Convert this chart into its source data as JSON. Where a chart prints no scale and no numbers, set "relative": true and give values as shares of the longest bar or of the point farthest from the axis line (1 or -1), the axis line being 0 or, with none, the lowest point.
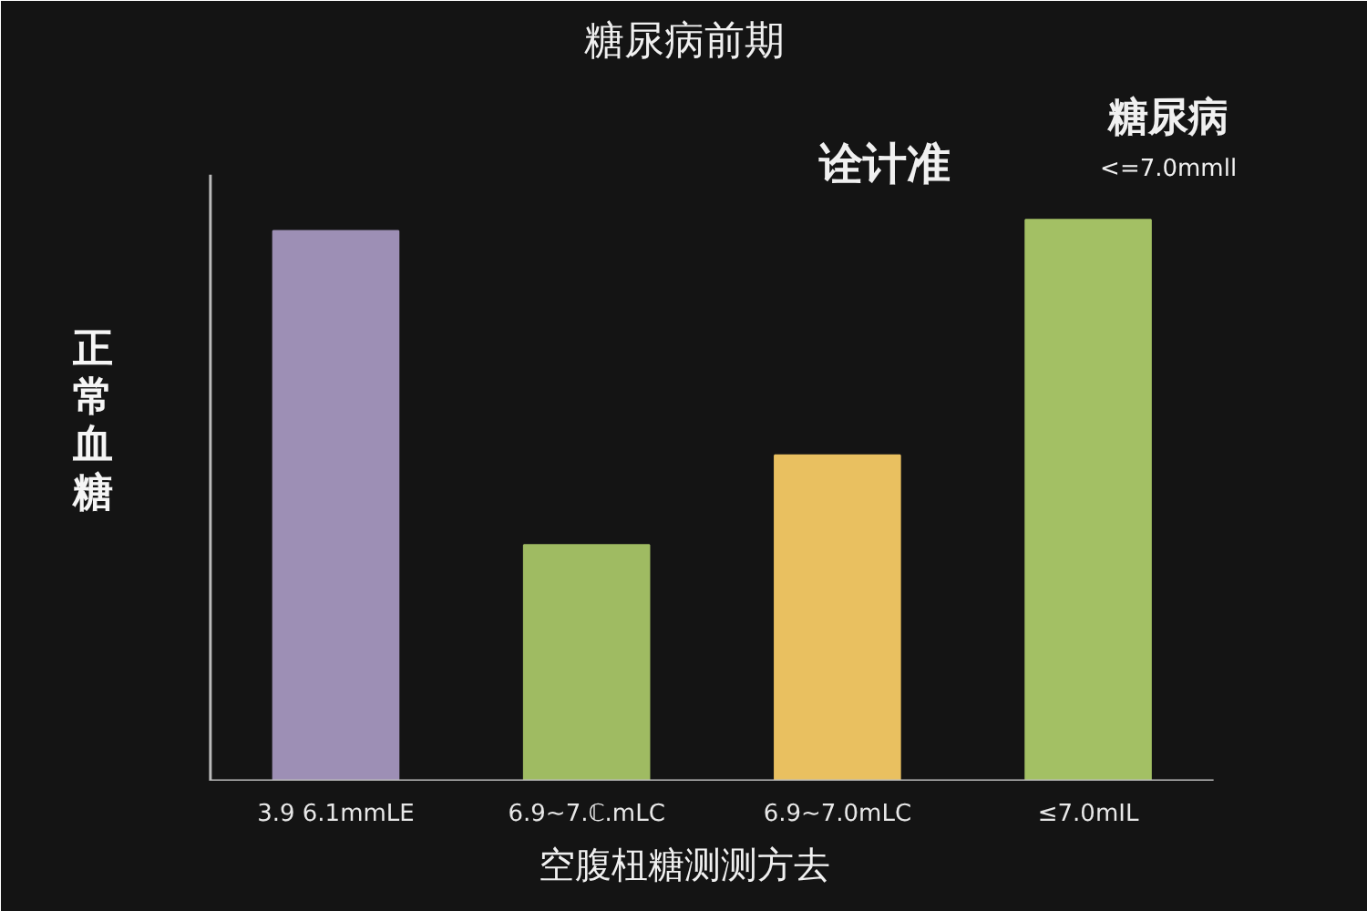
{
  "chart_data": {
    "type": "bar",
    "title": "糖尿病前期",
    "xlabel": "空腹杻糖测测方去",
    "ylabel": "正常血糖",
    "categories": [
      "3.9 6.1mmLE",
      "6.9~7.ℂ.mLC",
      "6.9~7.0mLC",
      "≤7.0mIL"
    ],
    "values": [
      0.98,
      0.42,
      0.58,
      1.0
    ],
    "colors": [
      "#9d8fb5",
      "#9fbb62",
      "#e9c060",
      "#a3c064"
    ],
    "relative": true,
    "annotations": [
      "诠计准",
      "糖尿病",
      "<=7.0mmll"
    ],
    "grid": false,
    "legend": false
  }
}
